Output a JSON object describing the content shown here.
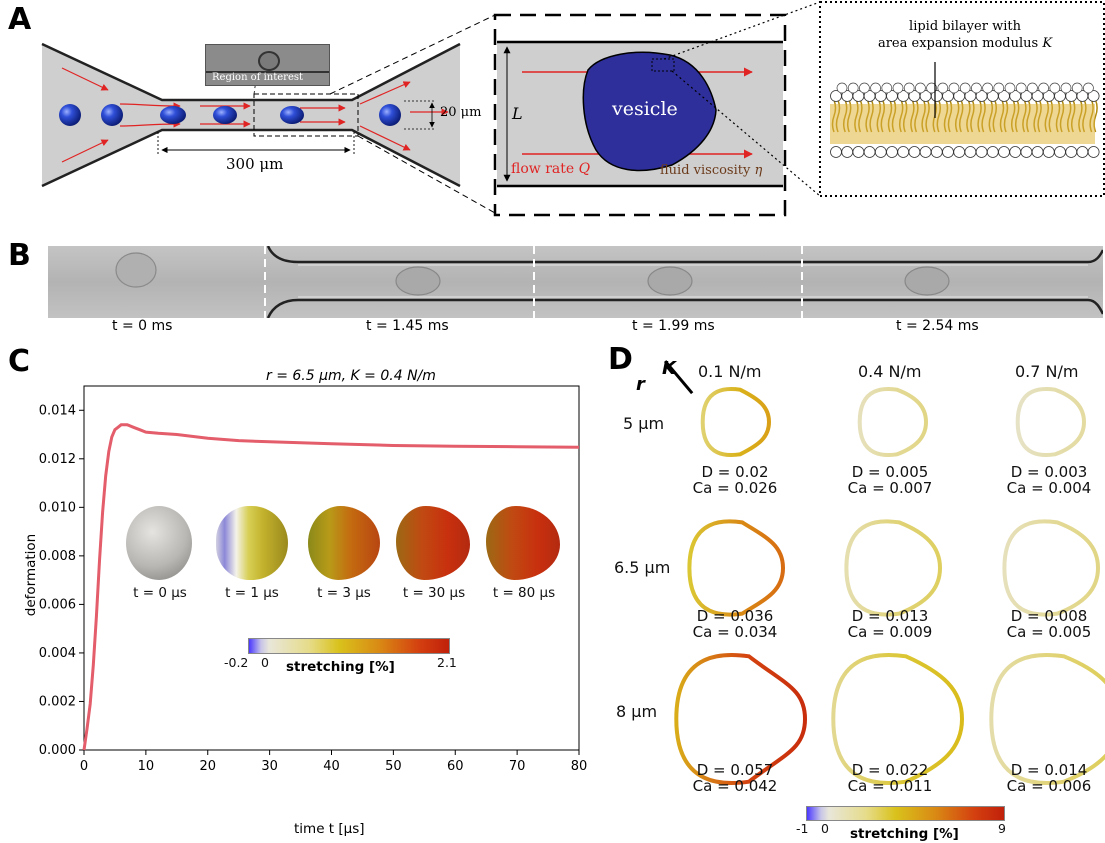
{
  "panels": {
    "a": "A",
    "b": "B",
    "c": "C",
    "d": "D"
  },
  "panelA": {
    "inset_label": "Region of interest",
    "width_label": "20 μm",
    "length_label": "300 μm",
    "box": {
      "L": "L",
      "vesicle": "vesicle",
      "flow_rate": "flow rate ",
      "Q": "Q",
      "viscosity": "fluid viscosity ",
      "eta": "η"
    },
    "bilayer_line1": "lipid bilayer with",
    "bilayer_line2": "area expansion modulus ",
    "K": "K"
  },
  "panelB": {
    "times": [
      "t = 0 ms",
      "t = 1.45 ms",
      "t = 1.99 ms",
      "t = 2.54 ms"
    ]
  },
  "panelC": {
    "snap_labels": [
      "t = 0 μs",
      "t = 1 μs",
      "t = 3 μs",
      "t = 30 μs",
      "t = 80 μs"
    ],
    "colorbar": {
      "min": "-0.2",
      "zero": "0",
      "max": "2.1",
      "label": "stretching [%]"
    }
  },
  "chart_data": {
    "type": "line",
    "title": "r = 6.5 μm, K = 0.4 N/m",
    "xlabel": "time t [μs]",
    "ylabel": "deformation",
    "xlim": [
      0,
      80
    ],
    "ylim": [
      0,
      0.015
    ],
    "xticks": [
      0,
      10,
      20,
      30,
      40,
      50,
      60,
      70,
      80
    ],
    "yticks": [
      "0.000",
      "0.002",
      "0.004",
      "0.006",
      "0.008",
      "0.010",
      "0.012",
      "0.014"
    ],
    "grid": false,
    "series": [
      {
        "color": "#e35d6a",
        "x": [
          0,
          0.5,
          1,
          1.5,
          2,
          2.5,
          3,
          3.5,
          4,
          4.5,
          5,
          5.5,
          6,
          6.5,
          7,
          8,
          9,
          10,
          12,
          15,
          20,
          25,
          30,
          40,
          50,
          60,
          70,
          80
        ],
        "y": [
          0,
          0.0009,
          0.0019,
          0.0035,
          0.0055,
          0.0078,
          0.0098,
          0.0113,
          0.0123,
          0.0129,
          0.0132,
          0.0133,
          0.0134,
          0.0134,
          0.0134,
          0.0133,
          0.0132,
          0.0131,
          0.01305,
          0.013,
          0.01285,
          0.01275,
          0.0127,
          0.01262,
          0.01255,
          0.01252,
          0.0125,
          0.01248
        ]
      }
    ]
  },
  "panelD": {
    "r_label": "r",
    "K_label": "K",
    "cols": [
      "0.1 N/m",
      "0.4 N/m",
      "0.7 N/m"
    ],
    "rows": [
      "5 μm",
      "6.5 μm",
      "8 μm"
    ],
    "cells": [
      [
        {
          "D": "D = 0.02",
          "Ca": "Ca = 0.026",
          "stretch": 3.2
        },
        {
          "D": "D = 0.005",
          "Ca": "Ca = 0.007",
          "stretch": 0.9
        },
        {
          "D": "D = 0.003",
          "Ca": "Ca = 0.004",
          "stretch": 0.6
        }
      ],
      [
        {
          "D": "D = 0.036",
          "Ca": "Ca = 0.034",
          "stretch": 5.0
        },
        {
          "D": "D = 0.013",
          "Ca": "Ca = 0.009",
          "stretch": 1.3
        },
        {
          "D": "D = 0.008",
          "Ca": "Ca = 0.005",
          "stretch": 0.9
        }
      ],
      [
        {
          "D": "D = 0.057",
          "Ca": "Ca = 0.042",
          "stretch": 8.0
        },
        {
          "D": "D = 0.022",
          "Ca": "Ca = 0.011",
          "stretch": 2.2
        },
        {
          "D": "D = 0.014",
          "Ca": "Ca = 0.006",
          "stretch": 1.4
        }
      ]
    ],
    "colorbar": {
      "min": "-1",
      "zero": "0",
      "max": "9",
      "label": "stretching [%]"
    }
  }
}
